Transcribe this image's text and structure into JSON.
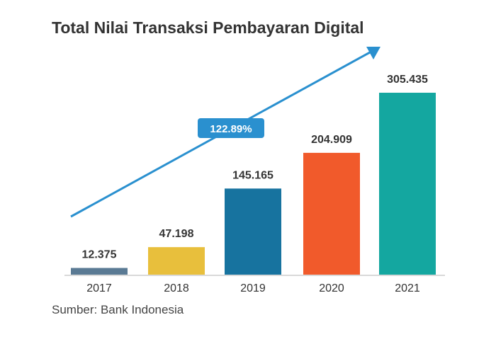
{
  "chart_data": {
    "type": "bar",
    "title": "Total Nilai Transaksi Pembayaran Digital",
    "categories": [
      "2017",
      "2018",
      "2019",
      "2020",
      "2021"
    ],
    "values": [
      12.375,
      47.198,
      145.165,
      204.909,
      305.435
    ],
    "value_labels": [
      "12.375",
      "47.198",
      "145.165",
      "204.909",
      "305.435"
    ],
    "colors": [
      "#5a7a94",
      "#e8bf3c",
      "#17739f",
      "#f15a2b",
      "#14a7a0"
    ],
    "ylim": [
      0,
      305.435
    ],
    "grid": false,
    "growth_label": "122.89%",
    "arrow_color": "#2a90cf",
    "source": "Sumber: Bank Indonesia"
  }
}
